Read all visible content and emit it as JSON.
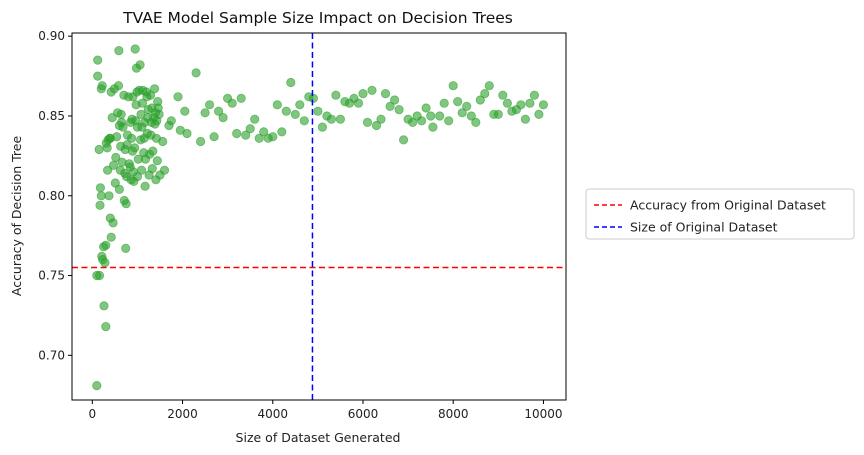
{
  "chart_data": {
    "type": "scatter",
    "title": "TVAE Model Sample Size Impact on Decision Trees",
    "xlabel": "Size of Dataset Generated",
    "ylabel": "Accuracy of Decision Tree",
    "xlim": [
      -450,
      10500
    ],
    "ylim": [
      0.672,
      0.902
    ],
    "xticks": [
      0,
      2000,
      4000,
      6000,
      8000,
      10000
    ],
    "xtick_labels": [
      "0",
      "2000",
      "4000",
      "6000",
      "8000",
      "10000"
    ],
    "yticks": [
      0.7,
      0.75,
      0.8,
      0.85,
      0.9
    ],
    "ytick_labels": [
      "0.70",
      "0.75",
      "0.80",
      "0.85",
      "0.90"
    ],
    "grid": false,
    "legend_placement": "outside-right",
    "point_color": "#2ca02c",
    "point_alpha": 0.6,
    "reference_lines": [
      {
        "orientation": "horizontal",
        "value": 0.755,
        "style": "dashed",
        "color": "#ff0000",
        "label": "Accuracy from Original Dataset"
      },
      {
        "orientation": "vertical",
        "value": 4880,
        "style": "dashed",
        "color": "#0000ff",
        "label": "Size of Original Dataset"
      }
    ],
    "series": [
      {
        "points": [
          [
            100,
            0.681
          ],
          [
            100,
            0.75
          ],
          [
            120,
            0.875
          ],
          [
            120,
            0.885
          ],
          [
            150,
            0.829
          ],
          [
            160,
            0.75
          ],
          [
            170,
            0.794
          ],
          [
            180,
            0.805
          ],
          [
            200,
            0.867
          ],
          [
            200,
            0.8
          ],
          [
            210,
            0.762
          ],
          [
            220,
            0.869
          ],
          [
            230,
            0.76
          ],
          [
            250,
            0.768
          ],
          [
            260,
            0.731
          ],
          [
            280,
            0.758
          ],
          [
            300,
            0.718
          ],
          [
            300,
            0.769
          ],
          [
            310,
            0.833
          ],
          [
            330,
            0.83
          ],
          [
            340,
            0.816
          ],
          [
            350,
            0.835
          ],
          [
            370,
            0.8
          ],
          [
            390,
            0.836
          ],
          [
            400,
            0.786
          ],
          [
            400,
            0.836
          ],
          [
            420,
            0.774
          ],
          [
            420,
            0.865
          ],
          [
            440,
            0.849
          ],
          [
            460,
            0.783
          ],
          [
            470,
            0.819
          ],
          [
            490,
            0.867
          ],
          [
            510,
            0.808
          ],
          [
            520,
            0.824
          ],
          [
            540,
            0.837
          ],
          [
            560,
            0.852
          ],
          [
            580,
            0.869
          ],
          [
            590,
            0.891
          ],
          [
            600,
            0.804
          ],
          [
            600,
            0.844
          ],
          [
            620,
            0.816
          ],
          [
            630,
            0.831
          ],
          [
            640,
            0.851
          ],
          [
            650,
            0.846
          ],
          [
            660,
            0.821
          ],
          [
            680,
            0.843
          ],
          [
            700,
            0.863
          ],
          [
            710,
            0.797
          ],
          [
            720,
            0.814
          ],
          [
            730,
            0.829
          ],
          [
            740,
            0.767
          ],
          [
            750,
            0.795
          ],
          [
            760,
            0.812
          ],
          [
            770,
            0.832
          ],
          [
            780,
            0.838
          ],
          [
            800,
            0.862
          ],
          [
            820,
            0.82
          ],
          [
            840,
            0.818
          ],
          [
            850,
            0.846
          ],
          [
            860,
            0.81
          ],
          [
            870,
            0.836
          ],
          [
            880,
            0.848
          ],
          [
            890,
            0.828
          ],
          [
            900,
            0.862
          ],
          [
            910,
            0.815
          ],
          [
            920,
            0.809
          ],
          [
            940,
            0.83
          ],
          [
            950,
            0.892
          ],
          [
            960,
            0.847
          ],
          [
            970,
            0.857
          ],
          [
            980,
            0.88
          ],
          [
            990,
            0.865
          ],
          [
            1000,
            0.812
          ],
          [
            1000,
            0.843
          ],
          [
            1020,
            0.823
          ],
          [
            1040,
            0.866
          ],
          [
            1060,
            0.882
          ],
          [
            1070,
            0.835
          ],
          [
            1080,
            0.851
          ],
          [
            1090,
            0.816
          ],
          [
            1100,
            0.843
          ],
          [
            1110,
            0.858
          ],
          [
            1120,
            0.866
          ],
          [
            1140,
            0.827
          ],
          [
            1150,
            0.836
          ],
          [
            1160,
            0.846
          ],
          [
            1170,
            0.806
          ],
          [
            1180,
            0.823
          ],
          [
            1200,
            0.865
          ],
          [
            1210,
            0.862
          ],
          [
            1220,
            0.839
          ],
          [
            1230,
            0.849
          ],
          [
            1240,
            0.854
          ],
          [
            1260,
            0.813
          ],
          [
            1270,
            0.826
          ],
          [
            1290,
            0.863
          ],
          [
            1300,
            0.838
          ],
          [
            1310,
            0.846
          ],
          [
            1320,
            0.855
          ],
          [
            1330,
            0.817
          ],
          [
            1340,
            0.828
          ],
          [
            1360,
            0.849
          ],
          [
            1380,
            0.867
          ],
          [
            1390,
            0.845
          ],
          [
            1400,
            0.852
          ],
          [
            1410,
            0.81
          ],
          [
            1420,
            0.836
          ],
          [
            1430,
            0.847
          ],
          [
            1440,
            0.822
          ],
          [
            1450,
            0.859
          ],
          [
            1460,
            0.855
          ],
          [
            1480,
            0.851
          ],
          [
            1500,
            0.813
          ],
          [
            1560,
            0.834
          ],
          [
            1600,
            0.816
          ],
          [
            1700,
            0.844
          ],
          [
            1750,
            0.847
          ],
          [
            1900,
            0.862
          ],
          [
            1950,
            0.841
          ],
          [
            2050,
            0.853
          ],
          [
            2100,
            0.839
          ],
          [
            2300,
            0.877
          ],
          [
            2400,
            0.834
          ],
          [
            2500,
            0.852
          ],
          [
            2600,
            0.857
          ],
          [
            2700,
            0.837
          ],
          [
            2800,
            0.853
          ],
          [
            2900,
            0.849
          ],
          [
            3000,
            0.861
          ],
          [
            3100,
            0.858
          ],
          [
            3200,
            0.839
          ],
          [
            3300,
            0.861
          ],
          [
            3400,
            0.838
          ],
          [
            3500,
            0.842
          ],
          [
            3600,
            0.848
          ],
          [
            3700,
            0.836
          ],
          [
            3800,
            0.84
          ],
          [
            3900,
            0.836
          ],
          [
            4000,
            0.837
          ],
          [
            4100,
            0.857
          ],
          [
            4200,
            0.84
          ],
          [
            4300,
            0.853
          ],
          [
            4400,
            0.871
          ],
          [
            4500,
            0.851
          ],
          [
            4600,
            0.857
          ],
          [
            4700,
            0.847
          ],
          [
            4800,
            0.862
          ],
          [
            4900,
            0.861
          ],
          [
            5000,
            0.853
          ],
          [
            5100,
            0.843
          ],
          [
            5200,
            0.85
          ],
          [
            5300,
            0.848
          ],
          [
            5400,
            0.863
          ],
          [
            5500,
            0.848
          ],
          [
            5600,
            0.859
          ],
          [
            5700,
            0.858
          ],
          [
            5800,
            0.861
          ],
          [
            5900,
            0.858
          ],
          [
            6000,
            0.864
          ],
          [
            6100,
            0.846
          ],
          [
            6200,
            0.866
          ],
          [
            6300,
            0.844
          ],
          [
            6400,
            0.848
          ],
          [
            6500,
            0.864
          ],
          [
            6600,
            0.856
          ],
          [
            6700,
            0.86
          ],
          [
            6800,
            0.854
          ],
          [
            6900,
            0.835
          ],
          [
            7000,
            0.848
          ],
          [
            7100,
            0.846
          ],
          [
            7200,
            0.85
          ],
          [
            7300,
            0.847
          ],
          [
            7400,
            0.855
          ],
          [
            7500,
            0.85
          ],
          [
            7550,
            0.843
          ],
          [
            7700,
            0.85
          ],
          [
            7800,
            0.858
          ],
          [
            7900,
            0.847
          ],
          [
            8000,
            0.869
          ],
          [
            8100,
            0.859
          ],
          [
            8200,
            0.852
          ],
          [
            8300,
            0.856
          ],
          [
            8400,
            0.85
          ],
          [
            8500,
            0.846
          ],
          [
            8600,
            0.86
          ],
          [
            8700,
            0.864
          ],
          [
            8800,
            0.869
          ],
          [
            8900,
            0.851
          ],
          [
            9000,
            0.851
          ],
          [
            9100,
            0.863
          ],
          [
            9200,
            0.858
          ],
          [
            9300,
            0.853
          ],
          [
            9400,
            0.854
          ],
          [
            9500,
            0.857
          ],
          [
            9600,
            0.848
          ],
          [
            9700,
            0.858
          ],
          [
            9800,
            0.863
          ],
          [
            9900,
            0.851
          ],
          [
            10000,
            0.857
          ]
        ]
      }
    ]
  }
}
